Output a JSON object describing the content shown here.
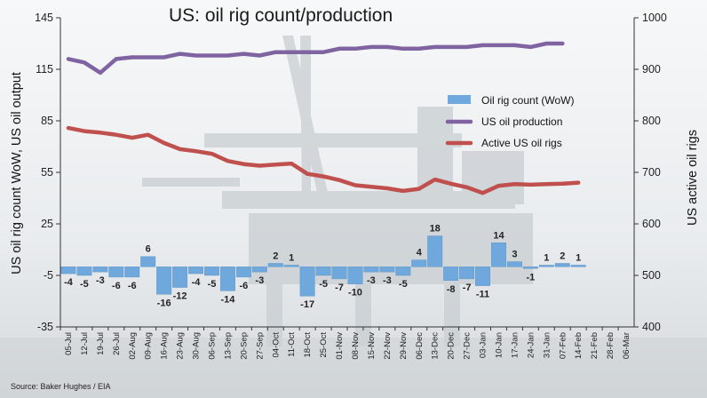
{
  "title": "US: oil rig count/production",
  "source": "Source: Baker Hughes / EIA",
  "colors": {
    "bar": "#6fa8dc",
    "production": "#8064a2",
    "rigs": "#c0504d"
  },
  "chart_data": {
    "type": "bar+line",
    "categories": [
      "05-Jul",
      "12-Jul",
      "19-Jul",
      "26-Jul",
      "02-Aug",
      "09-Aug",
      "16-Aug",
      "23-Aug",
      "30-Aug",
      "06-Sep",
      "13-Sep",
      "20-Sep",
      "27-Sep",
      "04-Oct",
      "11-Oct",
      "18-Oct",
      "25-Oct",
      "01-Nov",
      "08-Nov",
      "15-Nov",
      "22-Nov",
      "29-Nov",
      "06-Dec",
      "13-Dec",
      "20-Dec",
      "27-Dec",
      "03-Jan",
      "10-Jan",
      "17-Jan",
      "24-Jan",
      "31-Jan",
      "07-Feb",
      "14-Feb",
      "21-Feb",
      "28-Feb",
      "06-Mar"
    ],
    "ylabel_left": "US oil rig count WoW, US oil output",
    "ylabel_right": "US active oil rigs",
    "yticks_left": [
      "145",
      "115",
      "85",
      "55",
      "25",
      "-5",
      "-35"
    ],
    "yticks_right": [
      "1000",
      "900",
      "800",
      "700",
      "600",
      "500",
      "400"
    ],
    "ylim_left": [
      -35,
      145
    ],
    "ylim_right": [
      400,
      1000
    ],
    "legend_position": "right",
    "series": [
      {
        "name": "Oil rig count (WoW)",
        "type": "bar",
        "axis": "left",
        "values": [
          -4,
          -5,
          -3,
          -6,
          -6,
          6,
          -16,
          -12,
          -4,
          -5,
          -14,
          -6,
          -3,
          2,
          1,
          -17,
          -5,
          -7,
          -10,
          -3,
          -3,
          -5,
          4,
          18,
          -8,
          -7,
          -11,
          14,
          3,
          -1,
          1,
          2,
          1,
          null,
          null,
          null
        ],
        "labels": [
          "-4",
          "-5",
          "-3",
          "-6",
          "-6",
          "6",
          "-16",
          "-12",
          "-4",
          "-5",
          "-14",
          "-6",
          "-3",
          "2",
          "1",
          "-17",
          "-5",
          "-7",
          "-10",
          "-3",
          "-3",
          "-5",
          "4",
          "18",
          "-8",
          "-7",
          "-11",
          "14",
          "3",
          "-1",
          "1",
          "2",
          "1",
          "",
          "",
          ""
        ]
      },
      {
        "name": "US oil production",
        "type": "line",
        "axis": "left",
        "values": [
          121,
          119,
          113,
          121,
          122,
          122,
          122,
          124,
          123,
          123,
          123,
          124,
          123,
          125,
          125,
          125,
          125,
          127,
          127,
          128,
          128,
          127,
          127,
          128,
          128,
          128,
          129,
          129,
          129,
          128,
          130,
          130,
          null,
          null,
          null,
          null
        ]
      },
      {
        "name": "Active US oil rigs",
        "type": "line",
        "axis": "right",
        "values": [
          786,
          780,
          777,
          773,
          767,
          773,
          757,
          745,
          741,
          736,
          722,
          716,
          713,
          715,
          717,
          697,
          692,
          685,
          675,
          672,
          669,
          664,
          668,
          686,
          678,
          671,
          660,
          674,
          677,
          676,
          677,
          678,
          680,
          null,
          null,
          null
        ]
      }
    ]
  }
}
